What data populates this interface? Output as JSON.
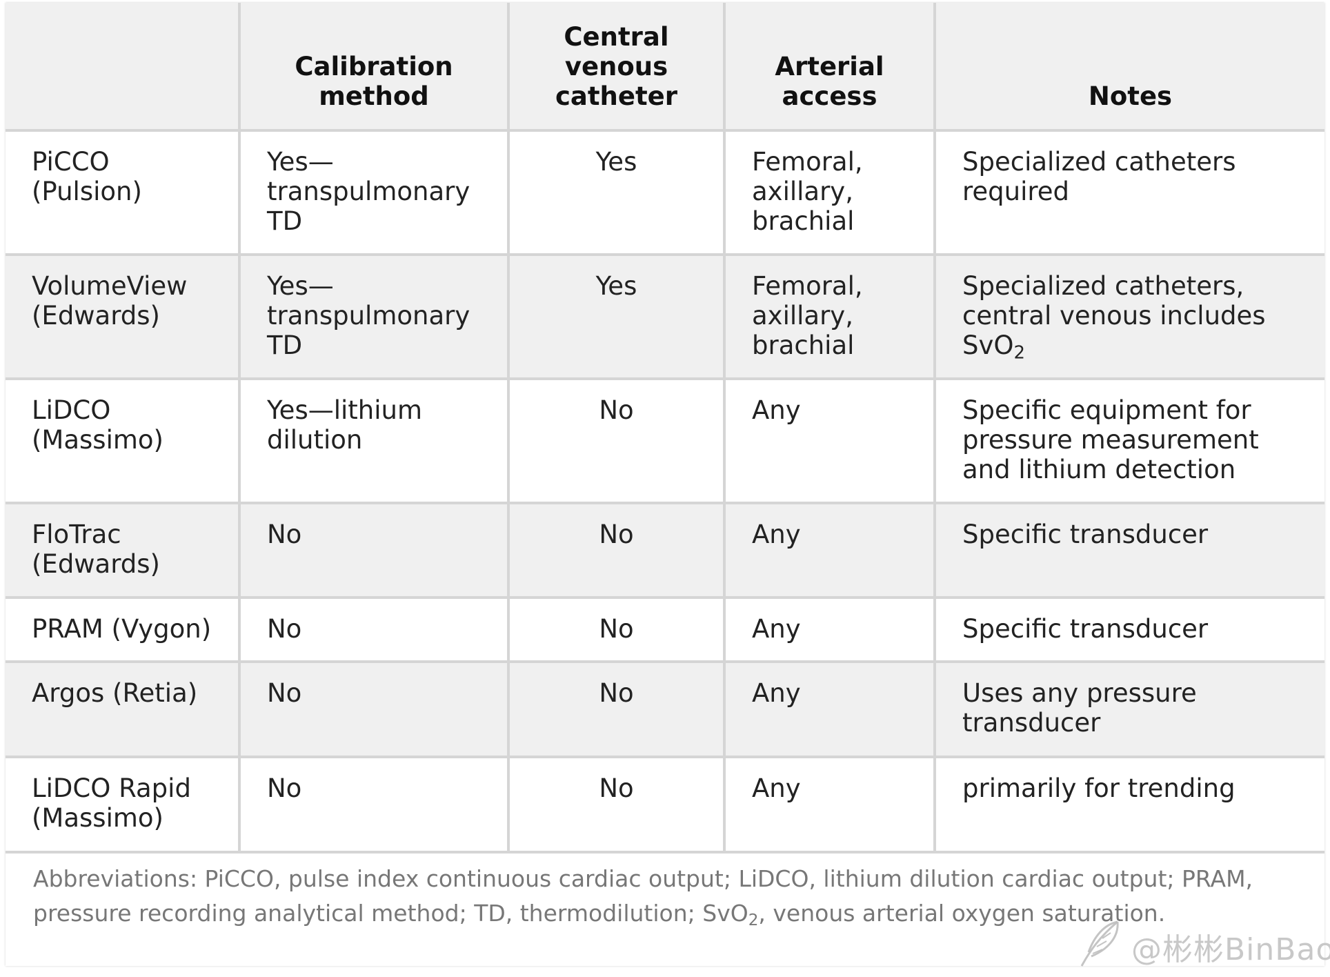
{
  "table": {
    "headers": {
      "device": "",
      "calibration": "Calibration method",
      "cvc": "Central venous catheter",
      "arterial": "Arterial access",
      "notes": "Notes"
    },
    "rows": [
      {
        "device": "PiCCO (Pulsion)",
        "calibration": "Yes—transpulmonary TD",
        "cvc": "Yes",
        "arterial": "Femoral, axillary, brachial",
        "notes": "Specialized catheters required"
      },
      {
        "device": "VolumeView (Edwards)",
        "calibration": "Yes—transpulmonary TD",
        "cvc": "Yes",
        "arterial": "Femoral, axillary, brachial",
        "notes_pre": "Specialized catheters, central venous includes SvO",
        "notes_sub": "2"
      },
      {
        "device": "LiDCO (Massimo)",
        "calibration": "Yes—lithium dilution",
        "cvc": "No",
        "arterial": "Any",
        "notes": "Specific equipment for pressure measurement and lithium detection"
      },
      {
        "device": "FloTrac (Edwards)",
        "calibration": "No",
        "cvc": "No",
        "arterial": "Any",
        "notes": "Specific transducer"
      },
      {
        "device": "PRAM (Vygon)",
        "calibration": "No",
        "cvc": "No",
        "arterial": "Any",
        "notes": "Specific transducer"
      },
      {
        "device": "Argos (Retia)",
        "calibration": "No",
        "cvc": "No",
        "arterial": "Any",
        "notes": "Uses any pressure transducer"
      },
      {
        "device": "LiDCO Rapid (Massimo)",
        "calibration": "No",
        "cvc": "No",
        "arterial": "Any",
        "notes": "primarily for trending"
      }
    ]
  },
  "footnote": {
    "pre": "Abbreviations: PiCCO, pulse index continuous cardiac output; LiDCO, lithium dilution cardiac output; PRAM, pressure recording analytical method; TD, thermodilution; SvO",
    "sub": "2",
    "post": ", venous arterial oxygen saturation."
  },
  "watermark": {
    "text": "@彬彬BinBao",
    "icon": "feather-icon"
  },
  "colors": {
    "header_bg": "#f0f0f0",
    "shaded_row_bg": "#f0f0f0",
    "border": "#d5d5d5",
    "footnote_text": "#777777"
  }
}
